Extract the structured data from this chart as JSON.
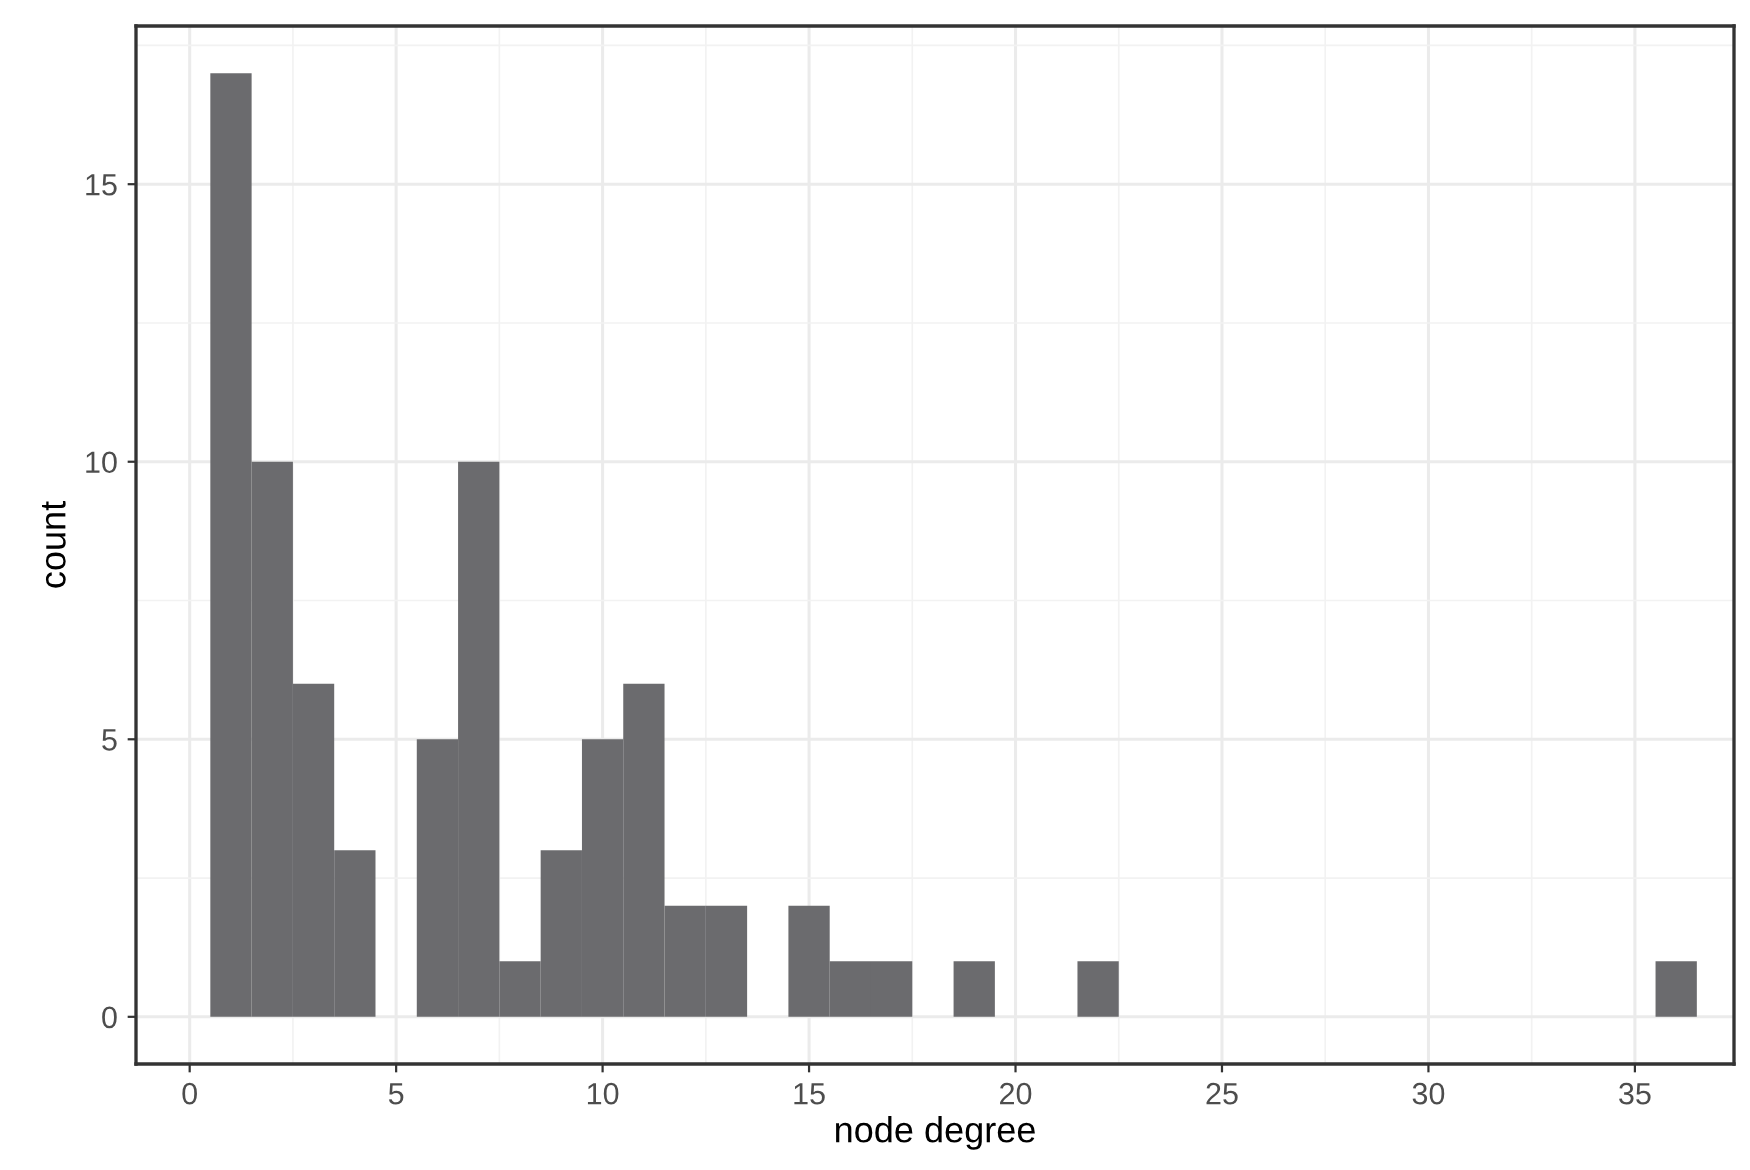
{
  "chart_data": {
    "type": "histogram",
    "xlabel": "node degree",
    "ylabel": "count",
    "bins": [
      0.5,
      1.5,
      2.5,
      3.5,
      4.5,
      5.5,
      6.5,
      7.5,
      8.5,
      9.5,
      10.5,
      11.5,
      12.5,
      13.5,
      14.5,
      15.5,
      16.5,
      17.5,
      18.5,
      19.5,
      20.5,
      21.5,
      22.5,
      23.5,
      24.5,
      25.5,
      26.5,
      27.5,
      28.5,
      29.5,
      30.5,
      31.5,
      32.5,
      33.5,
      34.5,
      35.5,
      36.5
    ],
    "values": [
      17,
      10,
      6,
      3,
      0,
      5,
      10,
      1,
      3,
      5,
      6,
      2,
      2,
      0,
      2,
      1,
      1,
      0,
      1,
      0,
      0,
      1,
      0,
      0,
      0,
      0,
      0,
      0,
      0,
      0,
      0,
      0,
      0,
      0,
      0,
      1
    ],
    "color": "#6b6b6e",
    "xlim": [
      -1.3,
      37.4
    ],
    "ylim": [
      -0.85,
      17.85
    ],
    "xticks": [
      0,
      5,
      10,
      15,
      20,
      25,
      30,
      35
    ],
    "yticks": [
      0,
      5,
      10,
      15
    ],
    "grid": true
  }
}
